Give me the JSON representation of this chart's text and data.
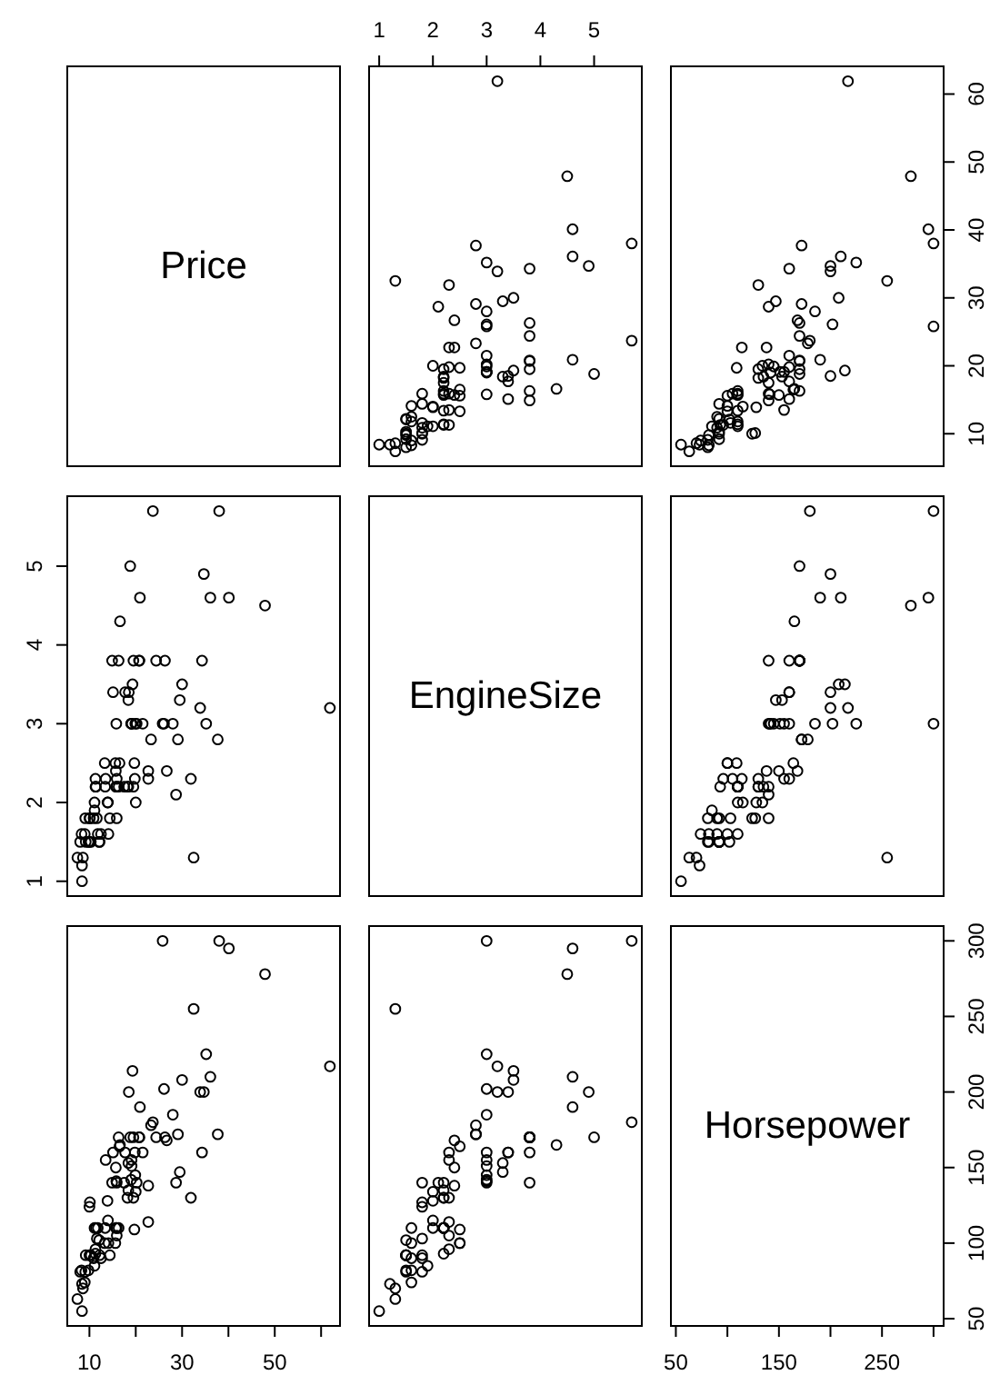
{
  "chart_data": [
    {
      "type": "other",
      "title": "Price"
    },
    {
      "type": "scatter",
      "marker": "circle",
      "color": "#000000",
      "tick_labels": "x",
      "xlim": [
        0.812,
        5.888
      ],
      "ylim": [
        5.22,
        64.08
      ],
      "xticks": [
        1,
        2,
        3,
        4,
        5
      ],
      "x": [
        1.8,
        3.2,
        2.8,
        2.8,
        3.5,
        2.2,
        3.8,
        5.7,
        3.8,
        4.9,
        4.6,
        2.2,
        2.2,
        3.4,
        2.2,
        3.8,
        4.3,
        5.0,
        5.7,
        3.3,
        3.0,
        3.3,
        1.5,
        2.2,
        2.5,
        3.0,
        2.5,
        3.0,
        1.5,
        3.5,
        1.3,
        1.8,
        2.3,
        2.3,
        2.0,
        3.0,
        3.0,
        4.6,
        1.0,
        1.6,
        2.3,
        1.5,
        2.2,
        1.5,
        1.8,
        1.5,
        2.0,
        4.5,
        3.0,
        3.0,
        3.8,
        4.6,
        1.6,
        1.8,
        2.5,
        3.0,
        1.3,
        2.3,
        3.2,
        1.6,
        3.8,
        1.5,
        3.0,
        1.6,
        2.4,
        3.0,
        3.0,
        2.3,
        2.2,
        3.8,
        3.8,
        1.8,
        1.6,
        2.0,
        3.4,
        3.4,
        3.8,
        2.1,
        1.9,
        1.2,
        1.8,
        2.2,
        1.3,
        1.5,
        2.2,
        2.2,
        2.4,
        1.8,
        2.5,
        2.0,
        2.8,
        2.3,
        2.4
      ],
      "values": [
        15.9,
        33.9,
        29.1,
        37.7,
        30.0,
        15.7,
        20.8,
        23.7,
        26.3,
        34.7,
        40.1,
        13.4,
        11.4,
        15.1,
        15.9,
        16.3,
        16.6,
        18.8,
        38.0,
        18.4,
        15.8,
        29.5,
        9.2,
        11.3,
        13.3,
        19.0,
        15.6,
        25.8,
        12.2,
        19.3,
        7.4,
        10.1,
        11.3,
        15.9,
        14.0,
        19.9,
        20.2,
        20.9,
        8.4,
        12.5,
        19.8,
        12.1,
        17.5,
        8.0,
        10.0,
        10.0,
        13.9,
        47.9,
        28.0,
        35.2,
        34.3,
        36.1,
        8.3,
        11.6,
        16.5,
        19.1,
        32.5,
        31.9,
        61.9,
        14.1,
        14.9,
        10.3,
        26.1,
        11.8,
        15.7,
        19.1,
        21.5,
        13.5,
        16.3,
        19.5,
        20.7,
        14.4,
        9.0,
        11.1,
        17.7,
        18.5,
        24.4,
        28.7,
        11.1,
        8.4,
        10.9,
        19.5,
        8.6,
        9.8,
        18.4,
        18.2,
        22.7,
        9.1,
        19.7,
        20.0,
        23.3,
        22.7,
        26.7
      ]
    },
    {
      "type": "scatter",
      "marker": "circle",
      "color": "#000000",
      "tick_labels": "y",
      "xlim": [
        45.2,
        309.8
      ],
      "ylim": [
        5.22,
        64.08
      ],
      "yticks": [
        10,
        20,
        30,
        40,
        50,
        60
      ],
      "x": [
        140,
        200,
        172,
        172,
        208,
        110,
        170,
        180,
        170,
        200,
        295,
        110,
        110,
        160,
        110,
        170,
        165,
        170,
        300,
        153,
        141,
        147,
        92,
        93,
        100,
        142,
        100,
        300,
        92,
        214,
        63,
        127,
        96,
        105,
        115,
        145,
        140,
        190,
        55,
        90,
        160,
        102,
        140,
        81,
        124,
        92,
        128,
        278,
        185,
        225,
        160,
        210,
        82,
        103,
        164,
        155,
        255,
        130,
        217,
        100,
        140,
        92,
        202,
        110,
        150,
        151,
        160,
        155,
        110,
        170,
        170,
        92,
        74,
        110,
        160,
        200,
        170,
        140,
        85,
        73,
        90,
        130,
        70,
        82,
        135,
        130,
        138,
        81,
        109,
        134,
        178,
        114,
        168
      ],
      "values": [
        15.9,
        33.9,
        29.1,
        37.7,
        30.0,
        15.7,
        20.8,
        23.7,
        26.3,
        34.7,
        40.1,
        13.4,
        11.4,
        15.1,
        15.9,
        16.3,
        16.6,
        18.8,
        38.0,
        18.4,
        15.8,
        29.5,
        9.2,
        11.3,
        13.3,
        19.0,
        15.6,
        25.8,
        12.2,
        19.3,
        7.4,
        10.1,
        11.3,
        15.9,
        14.0,
        19.9,
        20.2,
        20.9,
        8.4,
        12.5,
        19.8,
        12.1,
        17.5,
        8.0,
        10.0,
        10.0,
        13.9,
        47.9,
        28.0,
        35.2,
        34.3,
        36.1,
        8.3,
        11.6,
        16.5,
        19.1,
        32.5,
        31.9,
        61.9,
        14.1,
        14.9,
        10.3,
        26.1,
        11.8,
        15.7,
        19.1,
        21.5,
        13.5,
        16.3,
        19.5,
        20.7,
        14.4,
        9.0,
        11.1,
        17.7,
        18.5,
        24.4,
        28.7,
        11.1,
        8.4,
        10.9,
        19.5,
        8.6,
        9.8,
        18.4,
        18.2,
        22.7,
        9.1,
        19.7,
        20.0,
        23.3,
        22.7,
        26.7
      ]
    },
    {
      "type": "scatter",
      "marker": "circle",
      "color": "#000000",
      "tick_labels": "y",
      "xlim": [
        5.22,
        64.08
      ],
      "ylim": [
        0.812,
        5.888
      ],
      "yticks": [
        1,
        2,
        3,
        4,
        5
      ],
      "x": [
        15.9,
        33.9,
        29.1,
        37.7,
        30.0,
        15.7,
        20.8,
        23.7,
        26.3,
        34.7,
        40.1,
        13.4,
        11.4,
        15.1,
        15.9,
        16.3,
        16.6,
        18.8,
        38.0,
        18.4,
        15.8,
        29.5,
        9.2,
        11.3,
        13.3,
        19.0,
        15.6,
        25.8,
        12.2,
        19.3,
        7.4,
        10.1,
        11.3,
        15.9,
        14.0,
        19.9,
        20.2,
        20.9,
        8.4,
        12.5,
        19.8,
        12.1,
        17.5,
        8.0,
        10.0,
        10.0,
        13.9,
        47.9,
        28.0,
        35.2,
        34.3,
        36.1,
        8.3,
        11.6,
        16.5,
        19.1,
        32.5,
        31.9,
        61.9,
        14.1,
        14.9,
        10.3,
        26.1,
        11.8,
        15.7,
        19.1,
        21.5,
        13.5,
        16.3,
        19.5,
        20.7,
        14.4,
        9.0,
        11.1,
        17.7,
        18.5,
        24.4,
        28.7,
        11.1,
        8.4,
        10.9,
        19.5,
        8.6,
        9.8,
        18.4,
        18.2,
        22.7,
        9.1,
        19.7,
        20.0,
        23.3,
        22.7,
        26.7
      ],
      "values": [
        1.8,
        3.2,
        2.8,
        2.8,
        3.5,
        2.2,
        3.8,
        5.7,
        3.8,
        4.9,
        4.6,
        2.2,
        2.2,
        3.4,
        2.2,
        3.8,
        4.3,
        5.0,
        5.7,
        3.3,
        3.0,
        3.3,
        1.5,
        2.2,
        2.5,
        3.0,
        2.5,
        3.0,
        1.5,
        3.5,
        1.3,
        1.8,
        2.3,
        2.3,
        2.0,
        3.0,
        3.0,
        4.6,
        1.0,
        1.6,
        2.3,
        1.5,
        2.2,
        1.5,
        1.8,
        1.5,
        2.0,
        4.5,
        3.0,
        3.0,
        3.8,
        4.6,
        1.6,
        1.8,
        2.5,
        3.0,
        1.3,
        2.3,
        3.2,
        1.6,
        3.8,
        1.5,
        3.0,
        1.6,
        2.4,
        3.0,
        3.0,
        2.3,
        2.2,
        3.8,
        3.8,
        1.8,
        1.6,
        2.0,
        3.4,
        3.4,
        3.8,
        2.1,
        1.9,
        1.2,
        1.8,
        2.2,
        1.3,
        1.5,
        2.2,
        2.2,
        2.4,
        1.8,
        2.5,
        2.0,
        2.8,
        2.3,
        2.4
      ]
    },
    {
      "type": "other",
      "title": "EngineSize"
    },
    {
      "type": "scatter",
      "marker": "circle",
      "color": "#000000",
      "tick_labels": false,
      "xlim": [
        45.2,
        309.8
      ],
      "ylim": [
        0.812,
        5.888
      ],
      "x": [
        140,
        200,
        172,
        172,
        208,
        110,
        170,
        180,
        170,
        200,
        295,
        110,
        110,
        160,
        110,
        170,
        165,
        170,
        300,
        153,
        141,
        147,
        92,
        93,
        100,
        142,
        100,
        300,
        92,
        214,
        63,
        127,
        96,
        105,
        115,
        145,
        140,
        190,
        55,
        90,
        160,
        102,
        140,
        81,
        124,
        92,
        128,
        278,
        185,
        225,
        160,
        210,
        82,
        103,
        164,
        155,
        255,
        130,
        217,
        100,
        140,
        92,
        202,
        110,
        150,
        151,
        160,
        155,
        110,
        170,
        170,
        92,
        74,
        110,
        160,
        200,
        170,
        140,
        85,
        73,
        90,
        130,
        70,
        82,
        135,
        130,
        138,
        81,
        109,
        134,
        178,
        114,
        168
      ],
      "values": [
        1.8,
        3.2,
        2.8,
        2.8,
        3.5,
        2.2,
        3.8,
        5.7,
        3.8,
        4.9,
        4.6,
        2.2,
        2.2,
        3.4,
        2.2,
        3.8,
        4.3,
        5.0,
        5.7,
        3.3,
        3.0,
        3.3,
        1.5,
        2.2,
        2.5,
        3.0,
        2.5,
        3.0,
        1.5,
        3.5,
        1.3,
        1.8,
        2.3,
        2.3,
        2.0,
        3.0,
        3.0,
        4.6,
        1.0,
        1.6,
        2.3,
        1.5,
        2.2,
        1.5,
        1.8,
        1.5,
        2.0,
        4.5,
        3.0,
        3.0,
        3.8,
        4.6,
        1.6,
        1.8,
        2.5,
        3.0,
        1.3,
        2.3,
        3.2,
        1.6,
        3.8,
        1.5,
        3.0,
        1.6,
        2.4,
        3.0,
        3.0,
        2.3,
        2.2,
        3.8,
        3.8,
        1.8,
        1.6,
        2.0,
        3.4,
        3.4,
        3.8,
        2.1,
        1.9,
        1.2,
        1.8,
        2.2,
        1.3,
        1.5,
        2.2,
        2.2,
        2.4,
        1.8,
        2.5,
        2.0,
        2.8,
        2.3,
        2.4
      ]
    },
    {
      "type": "scatter",
      "marker": "circle",
      "color": "#000000",
      "tick_labels": "x",
      "xlim": [
        5.22,
        64.08
      ],
      "ylim": [
        45.2,
        309.8
      ],
      "xticks": [
        10,
        {
          "value": 20,
          "label": null
        },
        30,
        {
          "value": 40,
          "label": null
        },
        50,
        {
          "value": 60,
          "label": null
        }
      ],
      "x": [
        15.9,
        33.9,
        29.1,
        37.7,
        30.0,
        15.7,
        20.8,
        23.7,
        26.3,
        34.7,
        40.1,
        13.4,
        11.4,
        15.1,
        15.9,
        16.3,
        16.6,
        18.8,
        38.0,
        18.4,
        15.8,
        29.5,
        9.2,
        11.3,
        13.3,
        19.0,
        15.6,
        25.8,
        12.2,
        19.3,
        7.4,
        10.1,
        11.3,
        15.9,
        14.0,
        19.9,
        20.2,
        20.9,
        8.4,
        12.5,
        19.8,
        12.1,
        17.5,
        8.0,
        10.0,
        10.0,
        13.9,
        47.9,
        28.0,
        35.2,
        34.3,
        36.1,
        8.3,
        11.6,
        16.5,
        19.1,
        32.5,
        31.9,
        61.9,
        14.1,
        14.9,
        10.3,
        26.1,
        11.8,
        15.7,
        19.1,
        21.5,
        13.5,
        16.3,
        19.5,
        20.7,
        14.4,
        9.0,
        11.1,
        17.7,
        18.5,
        24.4,
        28.7,
        11.1,
        8.4,
        10.9,
        19.5,
        8.6,
        9.8,
        18.4,
        18.2,
        22.7,
        9.1,
        19.7,
        20.0,
        23.3,
        22.7,
        26.7
      ],
      "values": [
        140,
        200,
        172,
        172,
        208,
        110,
        170,
        180,
        170,
        200,
        295,
        110,
        110,
        160,
        110,
        170,
        165,
        170,
        300,
        153,
        141,
        147,
        92,
        93,
        100,
        142,
        100,
        300,
        92,
        214,
        63,
        127,
        96,
        105,
        115,
        145,
        140,
        190,
        55,
        90,
        160,
        102,
        140,
        81,
        124,
        92,
        128,
        278,
        185,
        225,
        160,
        210,
        82,
        103,
        164,
        155,
        255,
        130,
        217,
        100,
        140,
        92,
        202,
        110,
        150,
        151,
        160,
        155,
        110,
        170,
        170,
        92,
        74,
        110,
        160,
        200,
        170,
        140,
        85,
        73,
        90,
        130,
        70,
        82,
        135,
        130,
        138,
        81,
        109,
        134,
        178,
        114,
        168
      ]
    },
    {
      "type": "scatter",
      "marker": "circle",
      "color": "#000000",
      "tick_labels": false,
      "xlim": [
        0.812,
        5.888
      ],
      "ylim": [
        45.2,
        309.8
      ],
      "x": [
        1.8,
        3.2,
        2.8,
        2.8,
        3.5,
        2.2,
        3.8,
        5.7,
        3.8,
        4.9,
        4.6,
        2.2,
        2.2,
        3.4,
        2.2,
        3.8,
        4.3,
        5.0,
        5.7,
        3.3,
        3.0,
        3.3,
        1.5,
        2.2,
        2.5,
        3.0,
        2.5,
        3.0,
        1.5,
        3.5,
        1.3,
        1.8,
        2.3,
        2.3,
        2.0,
        3.0,
        3.0,
        4.6,
        1.0,
        1.6,
        2.3,
        1.5,
        2.2,
        1.5,
        1.8,
        1.5,
        2.0,
        4.5,
        3.0,
        3.0,
        3.8,
        4.6,
        1.6,
        1.8,
        2.5,
        3.0,
        1.3,
        2.3,
        3.2,
        1.6,
        3.8,
        1.5,
        3.0,
        1.6,
        2.4,
        3.0,
        3.0,
        2.3,
        2.2,
        3.8,
        3.8,
        1.8,
        1.6,
        2.0,
        3.4,
        3.4,
        3.8,
        2.1,
        1.9,
        1.2,
        1.8,
        2.2,
        1.3,
        1.5,
        2.2,
        2.2,
        2.4,
        1.8,
        2.5,
        2.0,
        2.8,
        2.3,
        2.4
      ],
      "values": [
        140,
        200,
        172,
        172,
        208,
        110,
        170,
        180,
        170,
        200,
        295,
        110,
        110,
        160,
        110,
        170,
        165,
        170,
        300,
        153,
        141,
        147,
        92,
        93,
        100,
        142,
        100,
        300,
        92,
        214,
        63,
        127,
        96,
        105,
        115,
        145,
        140,
        190,
        55,
        90,
        160,
        102,
        140,
        81,
        124,
        92,
        128,
        278,
        185,
        225,
        160,
        210,
        82,
        103,
        164,
        155,
        255,
        130,
        217,
        100,
        140,
        92,
        202,
        110,
        150,
        151,
        160,
        155,
        110,
        170,
        170,
        92,
        74,
        110,
        160,
        200,
        170,
        140,
        85,
        73,
        90,
        130,
        70,
        82,
        135,
        130,
        138,
        81,
        109,
        134,
        178,
        114,
        168
      ]
    },
    {
      "type": "scatter",
      "title": "Horsepower",
      "xlim": [
        45.2,
        309.8
      ],
      "ylim": [
        45.2,
        309.8
      ],
      "xticks": [
        50,
        {
          "value": 100,
          "label": null
        },
        150,
        {
          "value": 200,
          "label": null
        },
        250,
        {
          "value": 300,
          "label": null
        }
      ],
      "yticks": [
        50,
        100,
        150,
        200,
        250,
        300
      ]
    }
  ]
}
